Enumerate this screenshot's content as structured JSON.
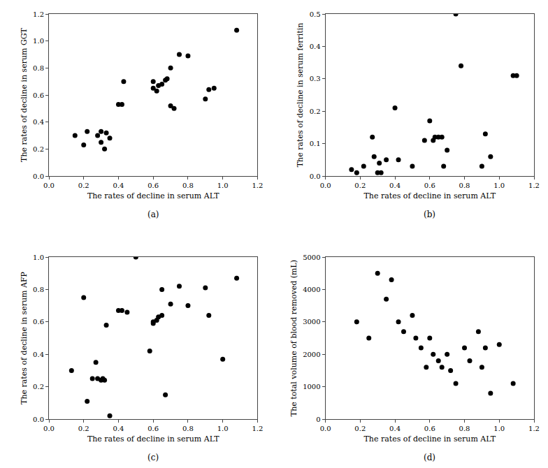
{
  "chart_data": [
    {
      "type": "scatter",
      "xlabel": "The rates of decline in serum ALT",
      "ylabel": "The rates of decline in serum GGT",
      "annotations": [
        "(a)"
      ],
      "x": [
        0.15,
        0.2,
        0.22,
        0.28,
        0.3,
        0.3,
        0.32,
        0.33,
        0.35,
        0.4,
        0.42,
        0.43,
        0.6,
        0.6,
        0.62,
        0.63,
        0.65,
        0.67,
        0.68,
        0.7,
        0.7,
        0.72,
        0.75,
        0.8,
        0.9,
        0.92,
        0.95,
        1.08
      ],
      "values": [
        0.3,
        0.23,
        0.33,
        0.3,
        0.25,
        0.33,
        0.2,
        0.32,
        0.28,
        0.53,
        0.53,
        0.7,
        0.7,
        0.65,
        0.63,
        0.67,
        0.68,
        0.71,
        0.72,
        0.8,
        0.52,
        0.5,
        0.9,
        0.89,
        0.57,
        0.64,
        0.65,
        1.08
      ],
      "color": "#000000",
      "grid": false,
      "xlim": [
        0.0,
        1.2
      ],
      "ylim": [
        0.0,
        1.2
      ],
      "xticks": [
        {
          "value": 0,
          "label": "0.0"
        },
        0.2,
        0.4,
        0.6,
        0.8,
        {
          "value": 1,
          "label": "1.0"
        },
        1.2
      ],
      "yticks": [
        {
          "value": 0,
          "label": "0.0"
        },
        0.2,
        0.4,
        0.6,
        0.8,
        {
          "value": 1,
          "label": "1.0"
        },
        1.2
      ]
    },
    {
      "type": "scatter",
      "xlabel": "The rates of decline in serum ALT",
      "ylabel": "The rates of decline in serum ferritin",
      "annotations": [
        "(b)"
      ],
      "x": [
        0.15,
        0.18,
        0.22,
        0.27,
        0.28,
        0.3,
        0.31,
        0.32,
        0.35,
        0.4,
        0.42,
        0.5,
        0.57,
        0.6,
        0.62,
        0.63,
        0.65,
        0.67,
        0.68,
        0.7,
        0.75,
        0.78,
        0.9,
        0.92,
        0.95,
        1.08,
        1.1
      ],
      "values": [
        0.02,
        0.01,
        0.03,
        0.12,
        0.06,
        0.01,
        0.04,
        0.01,
        0.05,
        0.21,
        0.05,
        0.03,
        0.11,
        0.17,
        0.11,
        0.12,
        0.12,
        0.12,
        0.03,
        0.08,
        0.5,
        0.34,
        0.03,
        0.13,
        0.06,
        0.31,
        0.31
      ],
      "color": "#000000",
      "grid": false,
      "xlim": [
        0.0,
        1.2
      ],
      "ylim": [
        0.0,
        0.5
      ],
      "xticks": [
        {
          "value": 0,
          "label": "0.0"
        },
        0.2,
        0.4,
        0.6,
        0.8,
        {
          "value": 1,
          "label": "1.0"
        },
        1.2
      ],
      "yticks": [
        {
          "value": 0,
          "label": "0.0"
        },
        0.1,
        0.2,
        0.3,
        0.4,
        0.5
      ]
    },
    {
      "type": "scatter",
      "xlabel": "The rates of decline in serum ALT",
      "ylabel": "The rates of decline in serum AFP",
      "annotations": [
        "(c)"
      ],
      "x": [
        0.13,
        0.2,
        0.22,
        0.25,
        0.27,
        0.28,
        0.3,
        0.31,
        0.32,
        0.33,
        0.35,
        0.4,
        0.42,
        0.45,
        0.5,
        0.58,
        0.6,
        0.6,
        0.62,
        0.63,
        0.65,
        0.65,
        0.67,
        0.7,
        0.75,
        0.8,
        0.9,
        0.92,
        1.0,
        1.08
      ],
      "values": [
        0.3,
        0.75,
        0.11,
        0.25,
        0.35,
        0.25,
        0.24,
        0.25,
        0.24,
        0.58,
        0.02,
        0.67,
        0.67,
        0.66,
        1.0,
        0.42,
        0.59,
        0.6,
        0.61,
        0.63,
        0.64,
        0.8,
        0.15,
        0.71,
        0.82,
        0.7,
        0.81,
        0.64,
        0.37,
        0.87
      ],
      "color": "#000000",
      "grid": false,
      "xlim": [
        0.0,
        1.2
      ],
      "ylim": [
        0.0,
        1.0
      ],
      "xticks": [
        {
          "value": 0,
          "label": "0.0"
        },
        0.2,
        0.4,
        0.6,
        0.8,
        {
          "value": 1,
          "label": "1.0"
        },
        1.2
      ],
      "yticks": [
        {
          "value": 0,
          "label": "0.0"
        },
        0.2,
        0.4,
        0.6,
        0.8,
        {
          "value": 1,
          "label": "1.0"
        }
      ]
    },
    {
      "type": "scatter",
      "xlabel": "The rates of decline in serum ALT",
      "ylabel": "The total volume of blood removed (mL)",
      "annotations": [
        "(d)"
      ],
      "x": [
        0.18,
        0.25,
        0.3,
        0.35,
        0.38,
        0.42,
        0.45,
        0.5,
        0.52,
        0.55,
        0.58,
        0.6,
        0.62,
        0.65,
        0.67,
        0.7,
        0.72,
        0.75,
        0.8,
        0.83,
        0.88,
        0.9,
        0.92,
        0.95,
        1.0,
        1.08
      ],
      "values": [
        3000,
        2500,
        4500,
        3700,
        4300,
        3000,
        2700,
        3200,
        2500,
        2200,
        1600,
        2500,
        2000,
        1800,
        1600,
        2000,
        1500,
        1100,
        2200,
        1800,
        2700,
        1600,
        2200,
        800,
        2300,
        1100
      ],
      "color": "#000000",
      "grid": false,
      "xlim": [
        0.0,
        1.2
      ],
      "ylim": [
        0,
        5000
      ],
      "xticks": [
        {
          "value": 0,
          "label": "0.0"
        },
        0.2,
        0.4,
        0.6,
        0.8,
        {
          "value": 1,
          "label": "1.0"
        },
        1.2
      ],
      "yticks": [
        0,
        1000,
        2000,
        3000,
        4000,
        5000
      ]
    }
  ]
}
